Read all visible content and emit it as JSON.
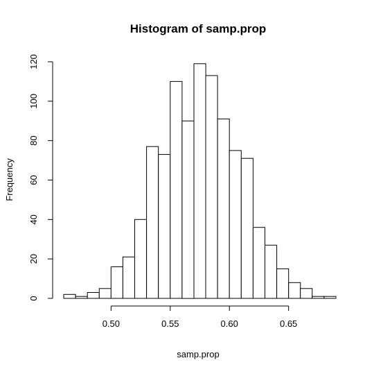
{
  "chart_data": {
    "type": "bar",
    "title": "Histogram of samp.prop",
    "xlabel": "samp.prop",
    "ylabel": "Frequency",
    "bin_width": 0.01,
    "bins": [
      {
        "start": 0.46,
        "end": 0.47,
        "count": 2
      },
      {
        "start": 0.47,
        "end": 0.48,
        "count": 1
      },
      {
        "start": 0.48,
        "end": 0.49,
        "count": 3
      },
      {
        "start": 0.49,
        "end": 0.5,
        "count": 5
      },
      {
        "start": 0.5,
        "end": 0.51,
        "count": 16
      },
      {
        "start": 0.51,
        "end": 0.52,
        "count": 21
      },
      {
        "start": 0.52,
        "end": 0.53,
        "count": 40
      },
      {
        "start": 0.53,
        "end": 0.54,
        "count": 77
      },
      {
        "start": 0.54,
        "end": 0.55,
        "count": 73
      },
      {
        "start": 0.55,
        "end": 0.56,
        "count": 110
      },
      {
        "start": 0.56,
        "end": 0.57,
        "count": 90
      },
      {
        "start": 0.57,
        "end": 0.58,
        "count": 119
      },
      {
        "start": 0.58,
        "end": 0.59,
        "count": 113
      },
      {
        "start": 0.59,
        "end": 0.6,
        "count": 91
      },
      {
        "start": 0.6,
        "end": 0.61,
        "count": 75
      },
      {
        "start": 0.61,
        "end": 0.62,
        "count": 71
      },
      {
        "start": 0.62,
        "end": 0.63,
        "count": 36
      },
      {
        "start": 0.63,
        "end": 0.64,
        "count": 27
      },
      {
        "start": 0.64,
        "end": 0.65,
        "count": 15
      },
      {
        "start": 0.65,
        "end": 0.66,
        "count": 8
      },
      {
        "start": 0.66,
        "end": 0.67,
        "count": 5
      },
      {
        "start": 0.67,
        "end": 0.68,
        "count": 1
      },
      {
        "start": 0.68,
        "end": 0.69,
        "count": 1
      }
    ],
    "xlim": [
      0.46,
      0.69
    ],
    "ylim": [
      0,
      120
    ],
    "x_ticks": [
      "0.50",
      "0.55",
      "0.60",
      "0.65"
    ],
    "x_tick_values": [
      0.5,
      0.55,
      0.6,
      0.65
    ],
    "y_ticks": [
      "0",
      "20",
      "40",
      "60",
      "80",
      "100",
      "120"
    ],
    "y_tick_values": [
      0,
      20,
      40,
      60,
      80,
      100,
      120
    ],
    "grid": false,
    "legend": "none",
    "colors": {
      "bar_fill": "#ffffff",
      "bar_stroke": "#000000",
      "background": "#ffffff"
    }
  }
}
